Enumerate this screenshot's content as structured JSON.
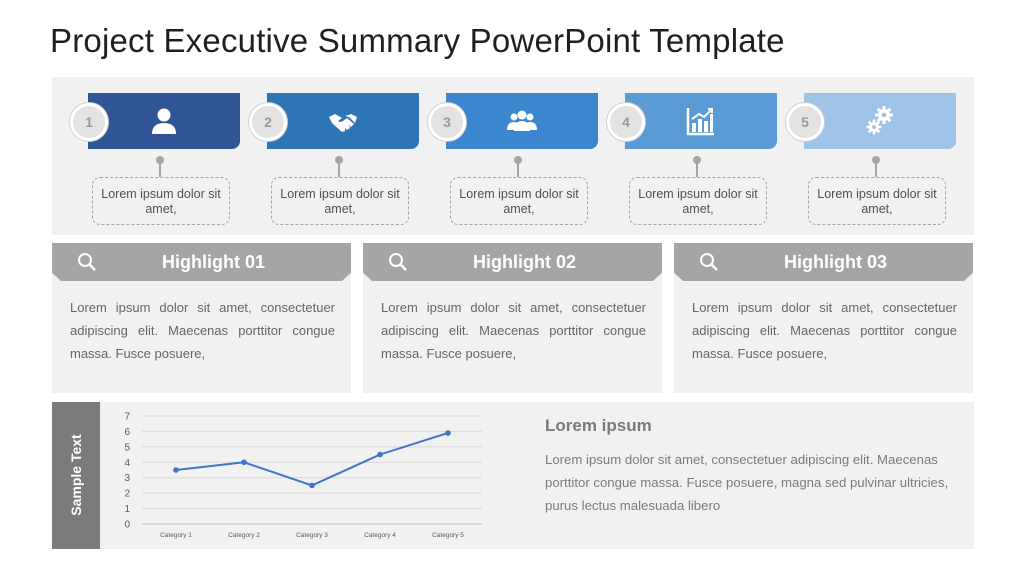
{
  "slide": {
    "title": "Project Executive Summary PowerPoint Template"
  },
  "steps": [
    {
      "number": "1",
      "icon": "person-icon",
      "color": "#2f5597",
      "text": "Lorem ipsum dolor sit amet,"
    },
    {
      "number": "2",
      "icon": "handshake-icon",
      "color": "#2e75b6",
      "text": "Lorem ipsum dolor sit amet,"
    },
    {
      "number": "3",
      "icon": "group-icon",
      "color": "#3b86cf",
      "text": "Lorem ipsum dolor sit amet,"
    },
    {
      "number": "4",
      "icon": "bar-chart-icon",
      "color": "#5b9bd5",
      "text": "Lorem ipsum dolor sit amet,"
    },
    {
      "number": "5",
      "icon": "gears-icon",
      "color": "#9dc3e6",
      "text": "Lorem ipsum dolor sit amet,"
    }
  ],
  "highlights": [
    {
      "icon": "search-icon",
      "title": "Highlight 01",
      "body": "Lorem ipsum dolor sit amet, consectetuer adipiscing elit. Maecenas porttitor congue massa. Fusce posuere,"
    },
    {
      "icon": "search-icon",
      "title": "Highlight 02",
      "body": "Lorem ipsum dolor sit amet, consectetuer adipiscing elit. Maecenas porttitor congue massa. Fusce posuere,"
    },
    {
      "icon": "search-icon",
      "title": "Highlight 03",
      "body": "Lorem ipsum dolor sit amet, consectetuer adipiscing elit. Maecenas porttitor congue massa. Fusce posuere,"
    }
  ],
  "sample": {
    "tab_label": "Sample Text",
    "heading": "Lorem ipsum",
    "body": "Lorem ipsum dolor sit amet, consectetuer adipiscing elit. Maecenas porttitor congue massa. Fusce posuere, magna sed pulvinar ultricies, purus lectus malesuada libero"
  },
  "chart_data": {
    "type": "line",
    "categories": [
      "Category 1",
      "Category 2",
      "Category 3",
      "Category 4",
      "Category 5"
    ],
    "series": [
      {
        "values": [
          3.5,
          4,
          2.5,
          4.5,
          5.9
        ],
        "color": "#4472c4"
      }
    ],
    "ylim": [
      0,
      7
    ],
    "yticks": [
      0,
      1,
      2,
      3,
      4,
      5,
      6,
      7
    ],
    "grid": true,
    "title": "",
    "xlabel": "",
    "ylabel": ""
  }
}
